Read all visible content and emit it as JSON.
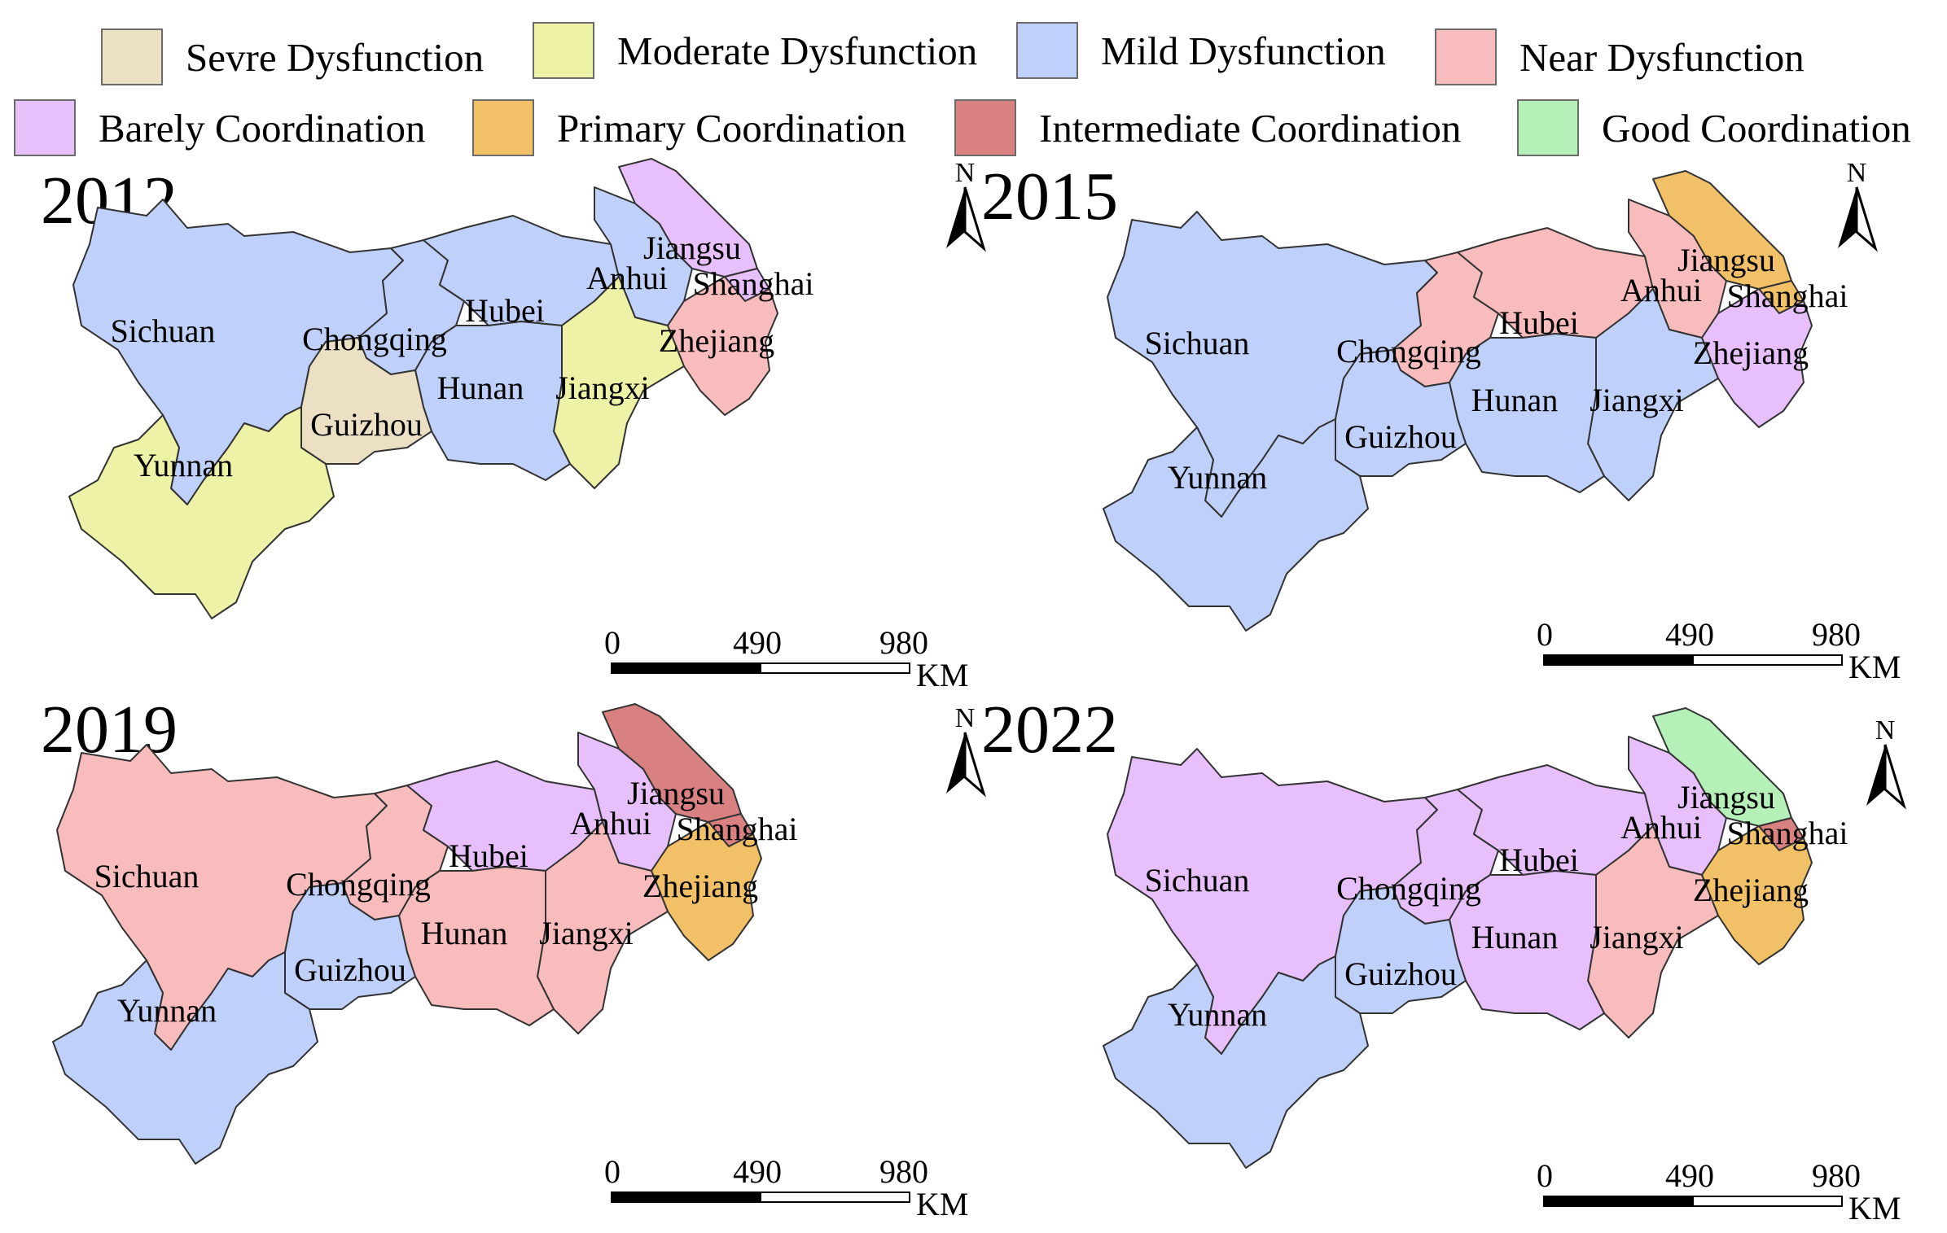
{
  "legend": [
    {
      "label": "Sevre Dysfunction",
      "color": "#ece0c4"
    },
    {
      "label": "Moderate Dysfunction",
      "color": "#eef2a6"
    },
    {
      "label": "Mild Dysfunction",
      "color": "#bfd0fb"
    },
    {
      "label": "Near Dysfunction",
      "color": "#f9bcbc"
    },
    {
      "label": "Barely Coordination",
      "color": "#e6bffb"
    },
    {
      "label": "Primary Coordination",
      "color": "#f1c067"
    },
    {
      "label": "Intermediate Coordination",
      "color": "#d98181"
    },
    {
      "label": "Good Coordination",
      "color": "#b4f0b8"
    }
  ],
  "maps": [
    {
      "year": "2012",
      "provinces": {
        "Sichuan": "Mild Dysfunction",
        "Chongqing": "Mild Dysfunction",
        "Hubei": "Mild Dysfunction",
        "Anhui": "Mild Dysfunction",
        "Jiangsu": "Barely Coordination",
        "Shanghai": "Barely Coordination",
        "Zhejiang": "Near Dysfunction",
        "Jiangxi": "Moderate Dysfunction",
        "Hunan": "Mild Dysfunction",
        "Guizhou": "Sevre Dysfunction",
        "Yunnan": "Moderate Dysfunction"
      }
    },
    {
      "year": "2015",
      "provinces": {
        "Sichuan": "Mild Dysfunction",
        "Chongqing": "Near Dysfunction",
        "Hubei": "Near Dysfunction",
        "Anhui": "Near Dysfunction",
        "Jiangsu": "Primary Coordination",
        "Shanghai": "Primary Coordination",
        "Zhejiang": "Barely Coordination",
        "Jiangxi": "Mild Dysfunction",
        "Hunan": "Mild Dysfunction",
        "Guizhou": "Mild Dysfunction",
        "Yunnan": "Mild Dysfunction"
      }
    },
    {
      "year": "2019",
      "provinces": {
        "Sichuan": "Near Dysfunction",
        "Chongqing": "Near Dysfunction",
        "Hubei": "Barely Coordination",
        "Anhui": "Barely Coordination",
        "Jiangsu": "Intermediate Coordination",
        "Shanghai": "Intermediate Coordination",
        "Zhejiang": "Primary Coordination",
        "Jiangxi": "Near Dysfunction",
        "Hunan": "Near Dysfunction",
        "Guizhou": "Mild Dysfunction",
        "Yunnan": "Mild Dysfunction"
      }
    },
    {
      "year": "2022",
      "provinces": {
        "Sichuan": "Barely Coordination",
        "Chongqing": "Barely Coordination",
        "Hubei": "Barely Coordination",
        "Anhui": "Barely Coordination",
        "Jiangsu": "Good Coordination",
        "Shanghai": "Intermediate Coordination",
        "Zhejiang": "Primary Coordination",
        "Jiangxi": "Near Dysfunction",
        "Hunan": "Barely Coordination",
        "Guizhou": "Mild Dysfunction",
        "Yunnan": "Mild Dysfunction"
      }
    }
  ],
  "north_label": "N",
  "scale_bar": {
    "ticks": [
      "0",
      "490",
      "980"
    ],
    "unit": "KM"
  },
  "province_labels": {
    "Sichuan": "Sichuan",
    "Chongqing": "Chongqing",
    "Hubei": "Hubei",
    "Anhui": "Anhui",
    "Jiangsu": "Jiangsu",
    "Shanghai": "Shanghai",
    "Zhejiang": "Zhejiang",
    "Jiangxi": "Jiangxi",
    "Hunan": "Hunan",
    "Guizhou": "Guizhou",
    "Yunnan": "Yunnan"
  }
}
